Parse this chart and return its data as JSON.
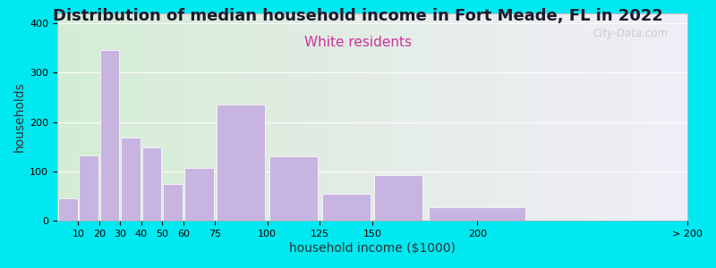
{
  "title": "Distribution of median household income in Fort Meade, FL in 2022",
  "subtitle": "White residents",
  "xlabel": "household income ($1000)",
  "ylabel": "households",
  "title_color": "#1a1a2e",
  "subtitle_color": "#cc3399",
  "bar_color": "#c8b4e0",
  "bar_edge_color": "#ffffff",
  "background_outer": "#00e8f0",
  "grad_left": "#d4ecd4",
  "grad_right": "#f2eef8",
  "ylim": [
    0,
    420
  ],
  "yticks": [
    0,
    100,
    200,
    300,
    400
  ],
  "title_fontsize": 13,
  "subtitle_fontsize": 11,
  "axis_label_fontsize": 10,
  "tick_fontsize": 8,
  "watermark": "City-Data.com",
  "bin_edges": [
    0,
    10,
    20,
    30,
    40,
    50,
    60,
    75,
    100,
    125,
    150,
    175,
    225,
    300
  ],
  "bar_values": [
    45,
    133,
    345,
    168,
    148,
    75,
    107,
    235,
    130,
    55,
    92,
    27,
    0
  ],
  "xtick_positions": [
    10,
    20,
    30,
    40,
    50,
    60,
    75,
    100,
    125,
    150,
    200,
    300
  ],
  "xtick_labels": [
    "10",
    "20",
    "30",
    "40",
    "50",
    "60",
    "75",
    "100",
    "125",
    "150",
    "200",
    "> 200"
  ]
}
